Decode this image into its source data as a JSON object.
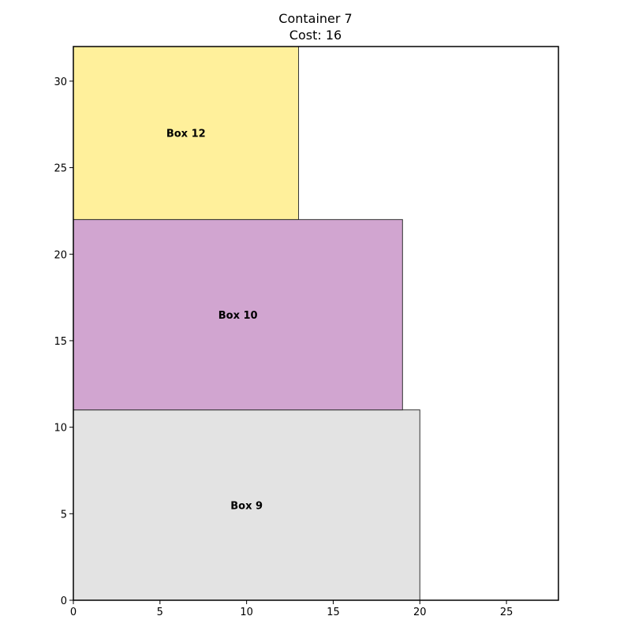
{
  "title": {
    "line1": "Container 7",
    "line2": "Cost: 16"
  },
  "container": {
    "width": 28,
    "height": 32
  },
  "axes": {
    "x_ticks": [
      0,
      5,
      10,
      15,
      20,
      25
    ],
    "y_ticks": [
      0,
      5,
      10,
      15,
      20,
      25,
      30
    ]
  },
  "boxes": [
    {
      "label": "Box 9",
      "x": 0,
      "y": 0,
      "w": 20,
      "h": 11,
      "color": "#e3e3e3"
    },
    {
      "label": "Box 10",
      "x": 0,
      "y": 11,
      "w": 19,
      "h": 11,
      "color": "#d1a5d0"
    },
    {
      "label": "Box 12",
      "x": 0,
      "y": 22,
      "w": 13,
      "h": 10,
      "color": "#fff09b"
    }
  ]
}
